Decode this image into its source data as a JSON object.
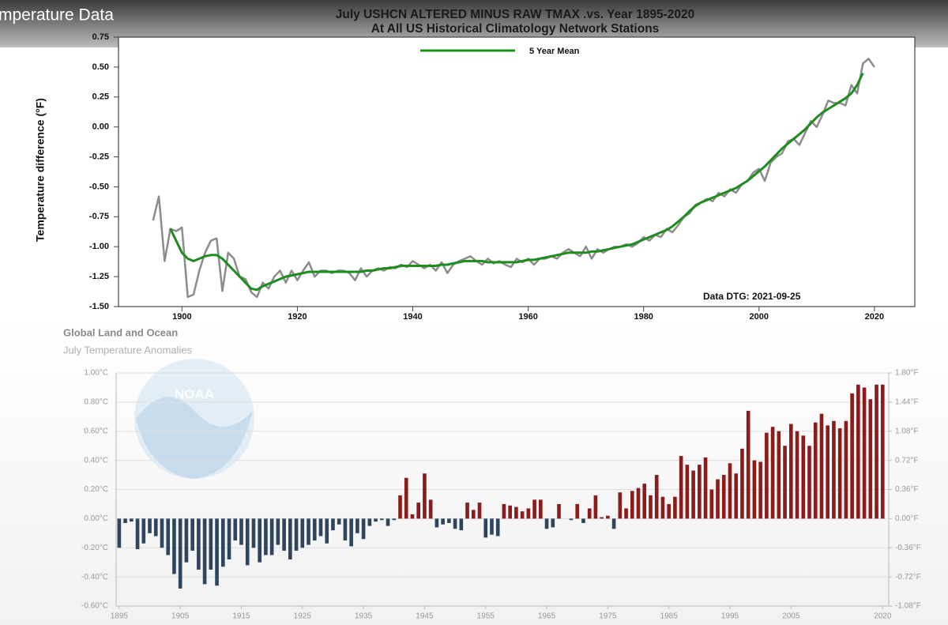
{
  "header": {
    "title": "mperature Data"
  },
  "logo": {
    "text": "NOAA"
  },
  "chart_data": [
    {
      "type": "line",
      "title": "July USHCN ALTERED MINUS RAW TMAX .vs. Year 1895-2020",
      "subtitle": "At All US Historical Climatology Network Stations",
      "y_label": "Temperature difference (°F)",
      "annotation": "Data DTG: 2021-09-25",
      "legend": "top",
      "xlim": [
        1889,
        2027
      ],
      "xticks": [
        1900,
        1920,
        1940,
        1960,
        1980,
        2000,
        2020
      ],
      "ylim": [
        -1.5,
        0.75
      ],
      "yticks": [
        {
          "value": -1.5,
          "label": "-1.50"
        },
        {
          "value": -1.25,
          "label": "-1.25"
        },
        {
          "value": -1,
          "label": "-1.00"
        },
        {
          "value": -0.75,
          "label": "-0.75"
        },
        {
          "value": -0.5,
          "label": "-0.50"
        },
        {
          "value": -0.25,
          "label": "-0.25"
        },
        {
          "value": 0,
          "label": "0.00"
        },
        0.25,
        {
          "value": 0.5,
          "label": "0.50"
        },
        0.75
      ],
      "x": [
        1895,
        1896,
        1897,
        1898,
        1899,
        1900,
        1901,
        1902,
        1903,
        1904,
        1905,
        1906,
        1907,
        1908,
        1909,
        1910,
        1911,
        1912,
        1913,
        1914,
        1915,
        1916,
        1917,
        1918,
        1919,
        1920,
        1921,
        1922,
        1923,
        1924,
        1925,
        1926,
        1927,
        1928,
        1929,
        1930,
        1931,
        1932,
        1933,
        1934,
        1935,
        1936,
        1937,
        1938,
        1939,
        1940,
        1941,
        1942,
        1943,
        1944,
        1945,
        1946,
        1947,
        1948,
        1949,
        1950,
        1951,
        1952,
        1953,
        1954,
        1955,
        1956,
        1957,
        1958,
        1959,
        1960,
        1961,
        1962,
        1963,
        1964,
        1965,
        1966,
        1967,
        1968,
        1969,
        1970,
        1971,
        1972,
        1973,
        1974,
        1975,
        1976,
        1977,
        1978,
        1979,
        1980,
        1981,
        1982,
        1983,
        1984,
        1985,
        1986,
        1987,
        1988,
        1989,
        1990,
        1991,
        1992,
        1993,
        1994,
        1995,
        1996,
        1997,
        1998,
        1999,
        2000,
        2001,
        2002,
        2003,
        2004,
        2005,
        2006,
        2007,
        2008,
        2009,
        2010,
        2011,
        2012,
        2013,
        2014,
        2015,
        2016,
        2017,
        2018,
        2019,
        2020
      ],
      "series": [
        {
          "color": "#8c8c8c",
          "width": 2.5,
          "values": [
            -0.78,
            -0.58,
            -1.12,
            -0.85,
            -0.87,
            -0.84,
            -1.42,
            -1.4,
            -1.2,
            -1.05,
            -0.95,
            -0.93,
            -1.37,
            -1.05,
            -1.1,
            -1.25,
            -1.27,
            -1.38,
            -1.42,
            -1.3,
            -1.35,
            -1.25,
            -1.2,
            -1.3,
            -1.2,
            -1.28,
            -1.2,
            -1.13,
            -1.25,
            -1.2,
            -1.2,
            -1.22,
            -1.2,
            -1.2,
            -1.22,
            -1.28,
            -1.18,
            -1.25,
            -1.2,
            -1.18,
            -1.2,
            -1.17,
            -1.18,
            -1.15,
            -1.17,
            -1.12,
            -1.15,
            -1.18,
            -1.15,
            -1.2,
            -1.13,
            -1.22,
            -1.15,
            -1.12,
            -1.1,
            -1.08,
            -1.12,
            -1.15,
            -1.1,
            -1.14,
            -1.12,
            -1.15,
            -1.17,
            -1.1,
            -1.13,
            -1.1,
            -1.15,
            -1.1,
            -1.1,
            -1.08,
            -1.1,
            -1.05,
            -1.02,
            -1.05,
            -1.08,
            -1.0,
            -1.1,
            -1.02,
            -1.05,
            -1.02,
            -1.0,
            -1.0,
            -0.98,
            -1.0,
            -0.97,
            -0.92,
            -0.95,
            -0.9,
            -0.92,
            -0.85,
            -0.88,
            -0.82,
            -0.75,
            -0.72,
            -0.65,
            -0.63,
            -0.6,
            -0.62,
            -0.55,
            -0.58,
            -0.52,
            -0.55,
            -0.48,
            -0.45,
            -0.38,
            -0.35,
            -0.45,
            -0.3,
            -0.25,
            -0.22,
            -0.12,
            -0.1,
            -0.15,
            -0.05,
            0.05,
            0.0,
            0.1,
            0.22,
            0.2,
            0.2,
            0.18,
            0.35,
            0.28,
            0.53,
            0.57,
            0.5
          ]
        },
        {
          "name": "5 Year Mean",
          "color": "#1e8c1e",
          "width": 3,
          "values": [
            null,
            null,
            null,
            -0.85,
            -0.95,
            -1.05,
            -1.1,
            -1.12,
            -1.1,
            -1.08,
            -1.07,
            -1.07,
            -1.1,
            -1.15,
            -1.2,
            -1.25,
            -1.3,
            -1.35,
            -1.36,
            -1.33,
            -1.31,
            -1.29,
            -1.27,
            -1.25,
            -1.24,
            -1.23,
            -1.22,
            -1.21,
            -1.21,
            -1.21,
            -1.21,
            -1.21,
            -1.21,
            -1.21,
            -1.21,
            -1.21,
            -1.21,
            -1.2,
            -1.2,
            -1.19,
            -1.18,
            -1.18,
            -1.17,
            -1.16,
            -1.16,
            -1.16,
            -1.16,
            -1.16,
            -1.16,
            -1.16,
            -1.15,
            -1.15,
            -1.14,
            -1.13,
            -1.12,
            -1.12,
            -1.12,
            -1.12,
            -1.13,
            -1.13,
            -1.13,
            -1.13,
            -1.13,
            -1.13,
            -1.12,
            -1.11,
            -1.11,
            -1.1,
            -1.09,
            -1.08,
            -1.07,
            -1.06,
            -1.05,
            -1.05,
            -1.05,
            -1.05,
            -1.04,
            -1.04,
            -1.03,
            -1.02,
            -1.01,
            -1.0,
            -0.99,
            -0.98,
            -0.96,
            -0.94,
            -0.92,
            -0.9,
            -0.88,
            -0.86,
            -0.83,
            -0.79,
            -0.75,
            -0.7,
            -0.66,
            -0.63,
            -0.61,
            -0.59,
            -0.57,
            -0.55,
            -0.53,
            -0.51,
            -0.48,
            -0.45,
            -0.41,
            -0.37,
            -0.33,
            -0.28,
            -0.23,
            -0.18,
            -0.14,
            -0.1,
            -0.06,
            -0.02,
            0.03,
            0.08,
            0.12,
            0.15,
            0.18,
            0.21,
            0.24,
            0.28,
            0.35,
            0.45,
            null,
            null
          ]
        }
      ]
    },
    {
      "type": "bar",
      "title": "Global Land and Ocean",
      "subtitle": "July Temperature Anomalies",
      "grid": true,
      "positive_color": "#8b1c1c",
      "negative_color": "#2f455e",
      "xlim": [
        1894.5,
        2021
      ],
      "xticks": [
        1895,
        1905,
        1915,
        1925,
        1935,
        1945,
        1955,
        1965,
        1975,
        1985,
        1995,
        2005,
        2020
      ],
      "ylim": [
        -0.6,
        1.0
      ],
      "yticks": [
        {
          "value": -0.6,
          "label": "-0.60°C"
        },
        {
          "value": -0.4,
          "label": "-0.40°C"
        },
        {
          "value": -0.2,
          "label": "-0.20°C"
        },
        {
          "value": 0,
          "label": "0.00°C"
        },
        {
          "value": 0.2,
          "label": "0.20°C"
        },
        {
          "value": 0.4,
          "label": "0.40°C"
        },
        {
          "value": 0.6,
          "label": "0.60°C"
        },
        {
          "value": 0.8,
          "label": "0.80°C"
        },
        {
          "value": 1.0,
          "label": "1.00°C"
        }
      ],
      "y2lim": [
        -1.08,
        1.8
      ],
      "y2ticks": [
        {
          "value": -1.08,
          "label": "-1.08°F"
        },
        {
          "value": -0.72,
          "label": "-0.72°F"
        },
        {
          "value": -0.36,
          "label": "-0.36°F"
        },
        {
          "value": 0,
          "label": "0.00°F"
        },
        {
          "value": 0.36,
          "label": "0.36°F"
        },
        {
          "value": 0.72,
          "label": "0.72°F"
        },
        {
          "value": 1.08,
          "label": "1.08°F"
        },
        {
          "value": 1.44,
          "label": "1.44°F"
        },
        {
          "value": 1.8,
          "label": "1.80°F"
        }
      ],
      "x": [
        1895,
        1896,
        1897,
        1898,
        1899,
        1900,
        1901,
        1902,
        1903,
        1904,
        1905,
        1906,
        1907,
        1908,
        1909,
        1910,
        1911,
        1912,
        1913,
        1914,
        1915,
        1916,
        1917,
        1918,
        1919,
        1920,
        1921,
        1922,
        1923,
        1924,
        1925,
        1926,
        1927,
        1928,
        1929,
        1930,
        1931,
        1932,
        1933,
        1934,
        1935,
        1936,
        1937,
        1938,
        1939,
        1940,
        1941,
        1942,
        1943,
        1944,
        1945,
        1946,
        1947,
        1948,
        1949,
        1950,
        1951,
        1952,
        1953,
        1954,
        1955,
        1956,
        1957,
        1958,
        1959,
        1960,
        1961,
        1962,
        1963,
        1964,
        1965,
        1966,
        1967,
        1968,
        1969,
        1970,
        1971,
        1972,
        1973,
        1974,
        1975,
        1976,
        1977,
        1978,
        1979,
        1980,
        1981,
        1982,
        1983,
        1984,
        1985,
        1986,
        1987,
        1988,
        1989,
        1990,
        1991,
        1992,
        1993,
        1994,
        1995,
        1996,
        1997,
        1998,
        1999,
        2000,
        2001,
        2002,
        2003,
        2004,
        2005,
        2006,
        2007,
        2008,
        2009,
        2010,
        2011,
        2012,
        2013,
        2014,
        2015,
        2016,
        2017,
        2018,
        2019,
        2020
      ],
      "values": [
        -0.2,
        -0.03,
        -0.02,
        -0.21,
        -0.17,
        -0.1,
        -0.12,
        -0.2,
        -0.25,
        -0.38,
        -0.48,
        -0.3,
        -0.22,
        -0.35,
        -0.45,
        -0.35,
        -0.46,
        -0.33,
        -0.28,
        -0.15,
        -0.18,
        -0.32,
        -0.2,
        -0.3,
        -0.25,
        -0.25,
        -0.18,
        -0.22,
        -0.28,
        -0.22,
        -0.2,
        -0.18,
        -0.15,
        -0.12,
        -0.17,
        -0.08,
        -0.04,
        -0.15,
        -0.19,
        -0.1,
        -0.14,
        -0.05,
        -0.02,
        -0.01,
        -0.05,
        -0.01,
        0.16,
        0.28,
        0.03,
        0.11,
        0.31,
        0.13,
        -0.06,
        -0.04,
        -0.03,
        -0.07,
        -0.08,
        0.11,
        0.06,
        0.11,
        -0.13,
        -0.11,
        -0.12,
        0.1,
        0.09,
        0.08,
        0.05,
        0.07,
        0.13,
        0.13,
        -0.07,
        -0.06,
        0.1,
        0.0,
        -0.01,
        0.1,
        -0.03,
        0.07,
        0.16,
        0.01,
        0.02,
        -0.07,
        0.18,
        0.07,
        0.19,
        0.21,
        0.24,
        0.16,
        0.3,
        0.15,
        0.1,
        0.15,
        0.43,
        0.37,
        0.33,
        0.37,
        0.42,
        0.2,
        0.27,
        0.3,
        0.38,
        0.31,
        0.48,
        0.74,
        0.4,
        0.39,
        0.59,
        0.63,
        0.6,
        0.5,
        0.65,
        0.6,
        0.57,
        0.5,
        0.66,
        0.72,
        0.64,
        0.67,
        0.62,
        0.67,
        0.86,
        0.92,
        0.9,
        0.82,
        0.92,
        0.92
      ]
    }
  ]
}
